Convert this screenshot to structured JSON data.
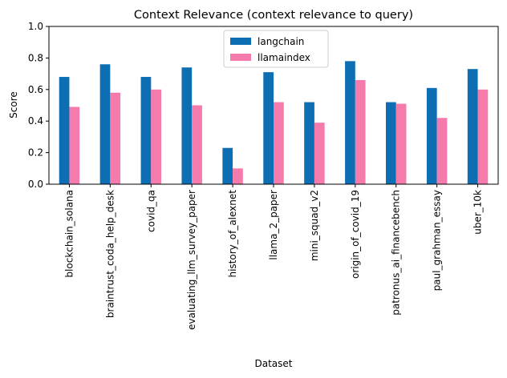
{
  "chart_data": {
    "type": "bar",
    "title": "Context Relevance (context relevance to query)",
    "xlabel": "Dataset",
    "ylabel": "Score",
    "ylim": [
      0,
      1.0
    ],
    "yticks": [
      "0.0",
      "0.2",
      "0.4",
      "0.6",
      "0.8",
      "1.0"
    ],
    "grid": false,
    "legend_position": "top-center",
    "categories": [
      "blockchain_solana",
      "braintrust_coda_help_desk",
      "covid_qa",
      "evaluating_llm_survey_paper",
      "history_of_alexnet",
      "llama_2_paper",
      "mini_squad_v2",
      "origin_of_covid_19",
      "patronus_ai_financebench",
      "paul_grahman_essay",
      "uber_10k"
    ],
    "series": [
      {
        "name": "langchain",
        "color": "#0e6eb4",
        "values": [
          0.68,
          0.76,
          0.68,
          0.74,
          0.23,
          0.71,
          0.52,
          0.78,
          0.52,
          0.61,
          0.73
        ]
      },
      {
        "name": "llamaindex",
        "color": "#f47bab",
        "values": [
          0.49,
          0.58,
          0.6,
          0.5,
          0.1,
          0.52,
          0.39,
          0.66,
          0.51,
          0.42,
          0.6
        ]
      }
    ]
  }
}
